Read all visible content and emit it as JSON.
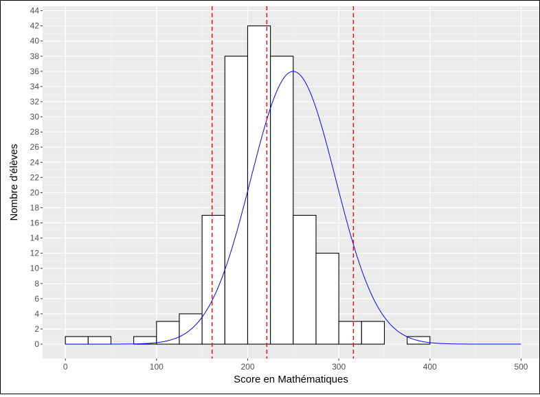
{
  "chart_data": {
    "type": "bar",
    "xlabel": "Score en Mathématiques",
    "ylabel": "Nombre d'élèves",
    "xlim": [
      -25,
      520
    ],
    "ylim": [
      -1.9,
      44.6
    ],
    "x_ticks": [
      0,
      100,
      200,
      300,
      400,
      500
    ],
    "y_ticks": [
      0,
      2,
      4,
      6,
      8,
      10,
      12,
      14,
      16,
      18,
      20,
      22,
      24,
      26,
      28,
      30,
      32,
      34,
      36,
      38,
      40,
      42,
      44
    ],
    "grid": true,
    "bin_width": 25,
    "bins": [
      {
        "x0": 0,
        "x1": 25,
        "count": 1
      },
      {
        "x0": 25,
        "x1": 50,
        "count": 1
      },
      {
        "x0": 75,
        "x1": 100,
        "count": 1
      },
      {
        "x0": 100,
        "x1": 125,
        "count": 3
      },
      {
        "x0": 125,
        "x1": 150,
        "count": 4
      },
      {
        "x0": 150,
        "x1": 175,
        "count": 17
      },
      {
        "x0": 175,
        "x1": 200,
        "count": 38
      },
      {
        "x0": 200,
        "x1": 225,
        "count": 42
      },
      {
        "x0": 225,
        "x1": 250,
        "count": 38
      },
      {
        "x0": 250,
        "x1": 275,
        "count": 17
      },
      {
        "x0": 275,
        "x1": 300,
        "count": 12
      },
      {
        "x0": 300,
        "x1": 325,
        "count": 3
      },
      {
        "x0": 325,
        "x1": 350,
        "count": 3
      },
      {
        "x0": 375,
        "x1": 400,
        "count": 1
      }
    ],
    "normal_curve": {
      "mean": 250,
      "sd": 46.5,
      "peak": 36,
      "x_range": [
        0,
        500
      ],
      "color": "#0000ff"
    },
    "vlines": {
      "values": [
        161,
        221,
        316
      ],
      "color": "#ff0000",
      "style": "dashed"
    },
    "colors": {
      "panel": "#ebebeb",
      "grid_major": "#ffffff",
      "bar_fill": "#ffffff",
      "bar_stroke": "#000000",
      "axis_text": "#4d4d4d"
    }
  }
}
